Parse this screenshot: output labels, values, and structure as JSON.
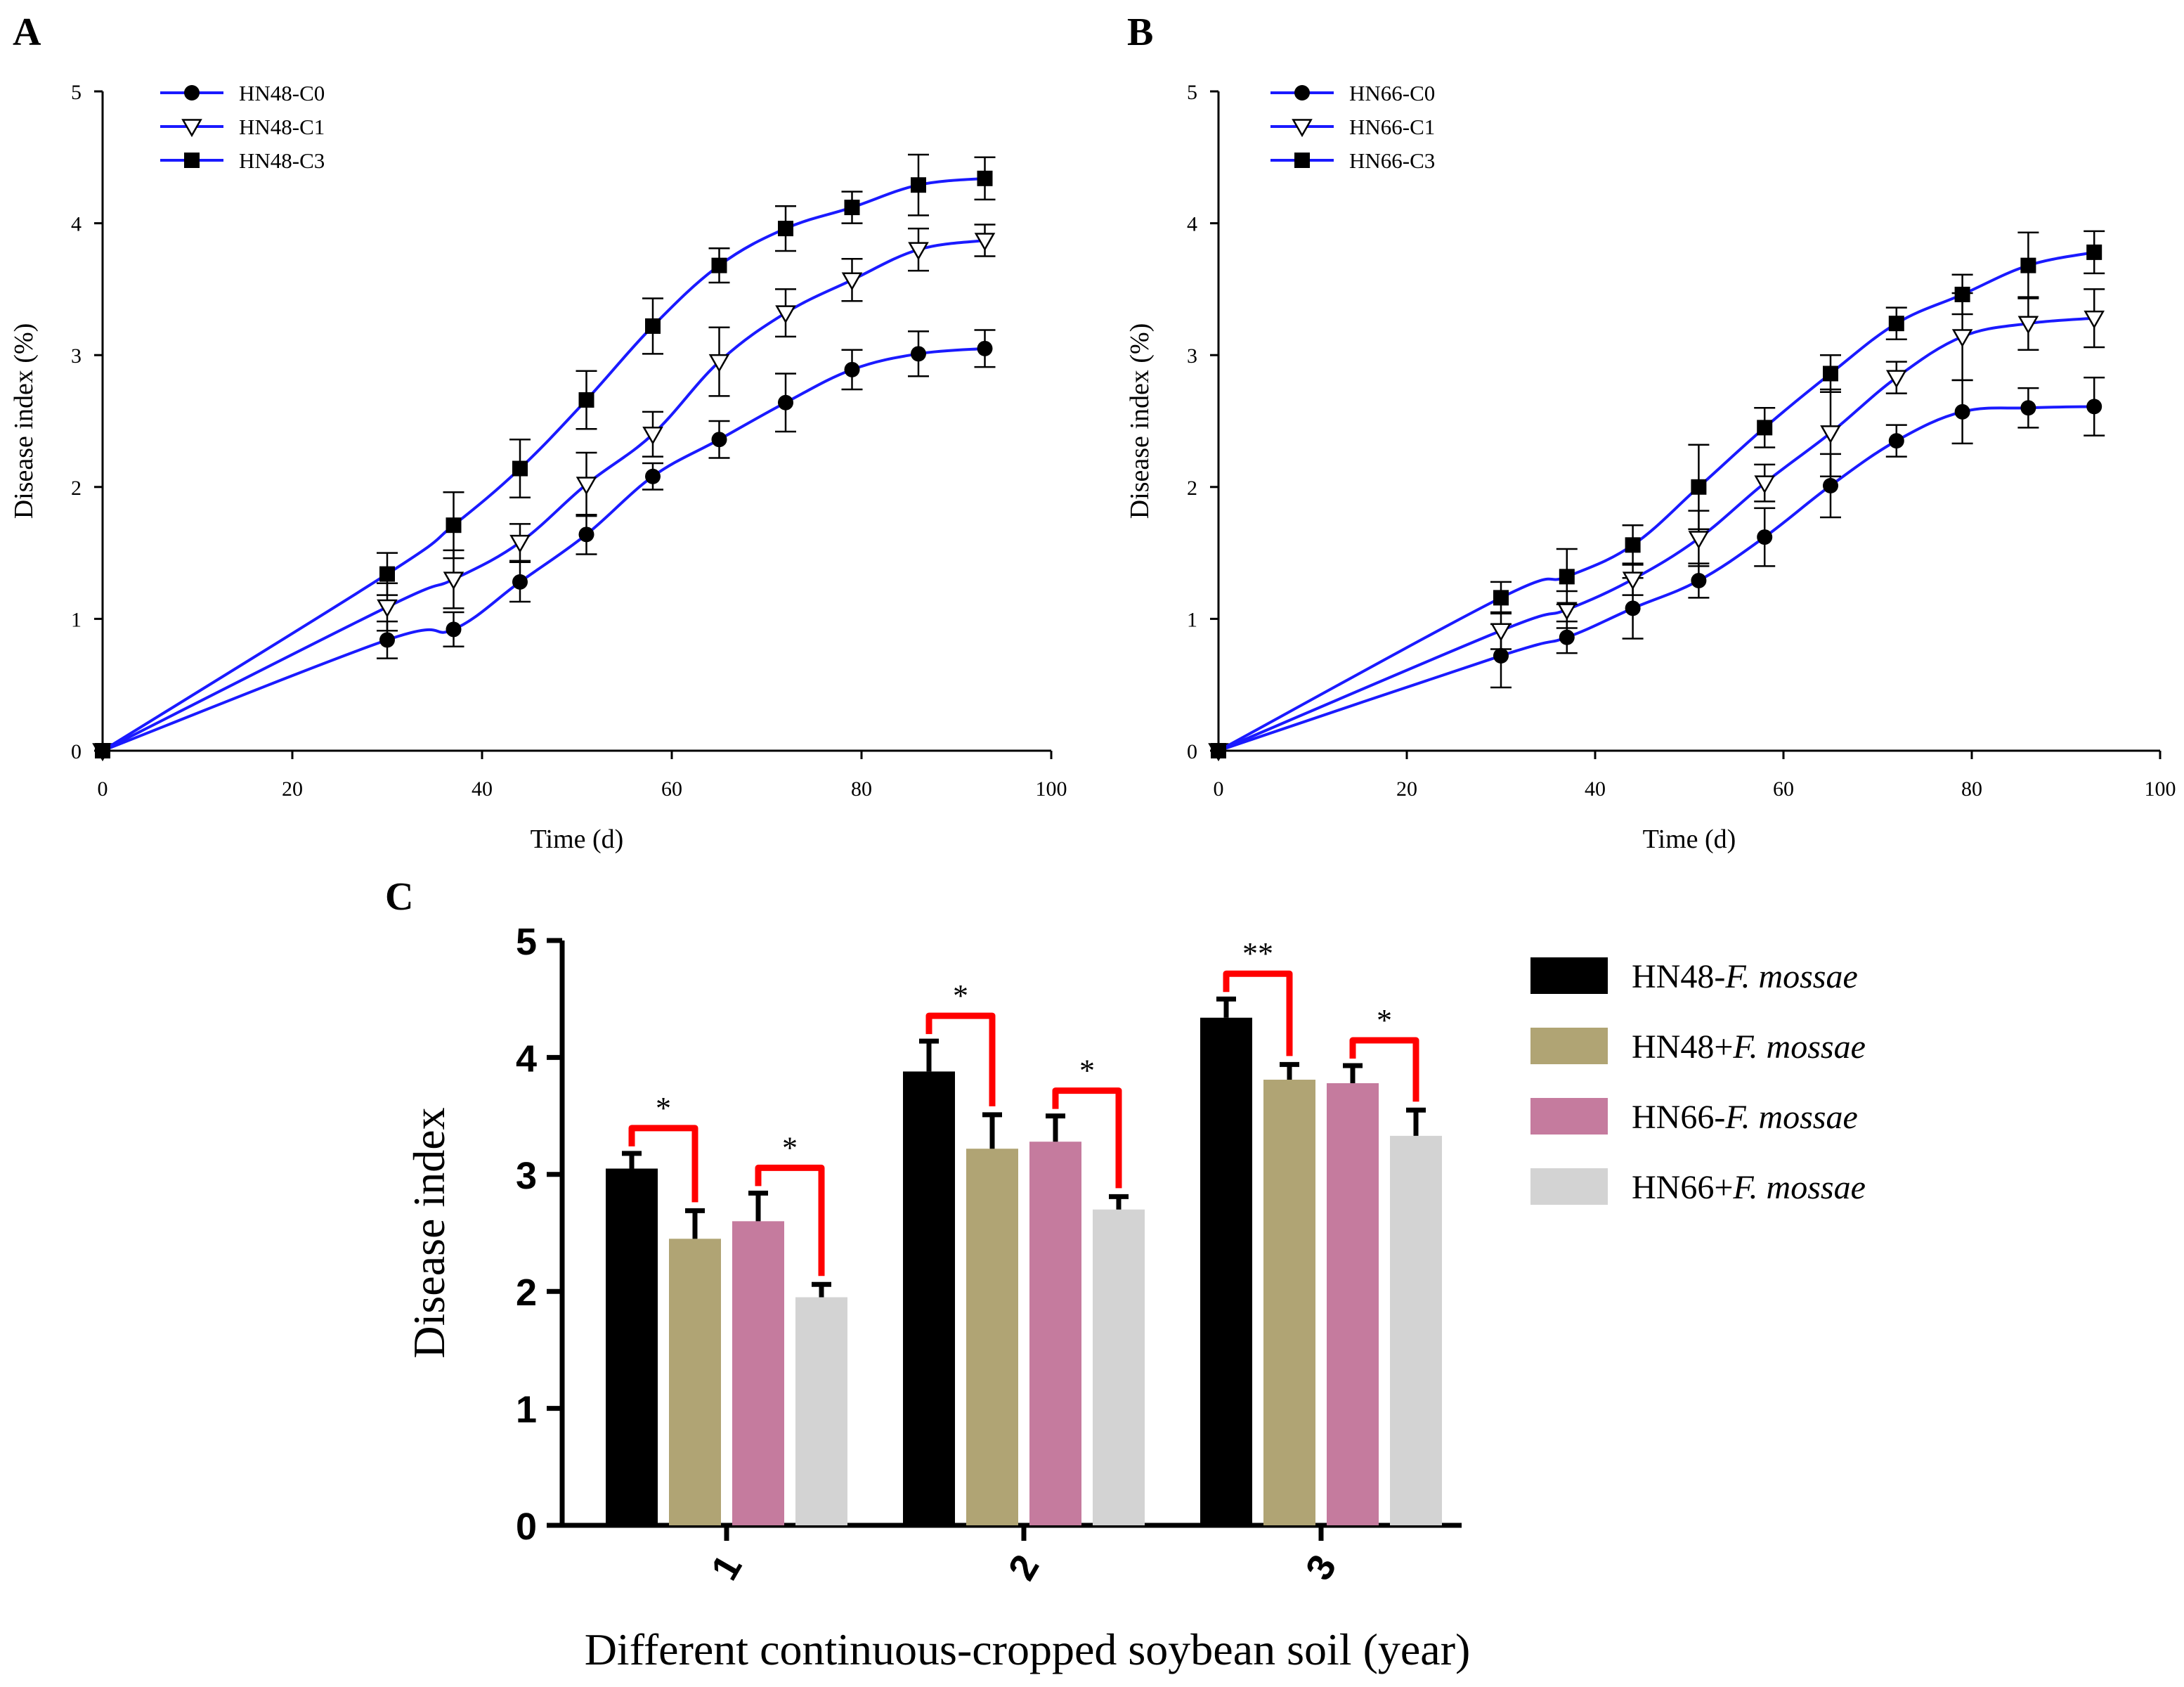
{
  "chart_data": [
    {
      "panel": "A",
      "type": "line",
      "title": "",
      "xlabel": "Time (d)",
      "ylabel": "Disease index (%)",
      "xlim": [
        0,
        100
      ],
      "ylim": [
        0,
        5
      ],
      "xticks": [
        0,
        20,
        40,
        60,
        80,
        100
      ],
      "yticks": [
        0,
        1,
        2,
        3,
        4,
        5
      ],
      "legend_position": "top-left",
      "x": [
        0,
        30,
        37,
        44,
        51,
        58,
        65,
        72,
        79,
        86,
        93
      ],
      "series": [
        {
          "name": "HN48-C0",
          "marker": "circle",
          "values": [
            0,
            0.84,
            0.92,
            1.28,
            1.64,
            2.08,
            2.36,
            2.64,
            2.89,
            3.01,
            3.05
          ],
          "errors": [
            0,
            0.14,
            0.13,
            0.15,
            0.15,
            0.1,
            0.14,
            0.22,
            0.15,
            0.17,
            0.14
          ]
        },
        {
          "name": "HN48-C1",
          "marker": "triangle-down-open",
          "values": [
            0,
            1.09,
            1.3,
            1.58,
            2.02,
            2.4,
            2.95,
            3.32,
            3.57,
            3.8,
            3.87
          ],
          "errors": [
            0,
            0.18,
            0.22,
            0.14,
            0.24,
            0.17,
            0.26,
            0.18,
            0.16,
            0.16,
            0.12
          ]
        },
        {
          "name": "HN48-C3",
          "marker": "square",
          "values": [
            0,
            1.34,
            1.71,
            2.14,
            2.66,
            3.22,
            3.68,
            3.96,
            4.12,
            4.29,
            4.34
          ],
          "errors": [
            0,
            0.16,
            0.25,
            0.22,
            0.22,
            0.21,
            0.13,
            0.17,
            0.12,
            0.23,
            0.16
          ]
        }
      ]
    },
    {
      "panel": "B",
      "type": "line",
      "title": "",
      "xlabel": "Time (d)",
      "ylabel": "Disease index (%)",
      "xlim": [
        0,
        100
      ],
      "ylim": [
        0,
        5
      ],
      "xticks": [
        0,
        20,
        40,
        60,
        80,
        100
      ],
      "yticks": [
        0,
        1,
        2,
        3,
        4,
        5
      ],
      "legend_position": "top-left",
      "x": [
        0,
        30,
        37,
        44,
        51,
        58,
        65,
        72,
        79,
        86,
        93
      ],
      "series": [
        {
          "name": "HN66-C0",
          "marker": "circle",
          "values": [
            0,
            0.72,
            0.86,
            1.08,
            1.29,
            1.62,
            2.01,
            2.35,
            2.57,
            2.6,
            2.61
          ],
          "errors": [
            0,
            0.24,
            0.12,
            0.23,
            0.13,
            0.22,
            0.24,
            0.12,
            0.24,
            0.15,
            0.22
          ]
        },
        {
          "name": "HN66-C1",
          "marker": "triangle-down-open",
          "values": [
            0,
            0.91,
            1.07,
            1.3,
            1.61,
            2.03,
            2.41,
            2.83,
            3.14,
            3.24,
            3.28
          ],
          "errors": [
            0,
            0.14,
            0.14,
            0.12,
            0.21,
            0.14,
            0.33,
            0.12,
            0.33,
            0.2,
            0.22
          ]
        },
        {
          "name": "HN66-C3",
          "marker": "square",
          "values": [
            0,
            1.16,
            1.32,
            1.56,
            2.0,
            2.45,
            2.86,
            3.24,
            3.46,
            3.68,
            3.78
          ],
          "errors": [
            0,
            0.12,
            0.21,
            0.15,
            0.32,
            0.15,
            0.14,
            0.12,
            0.15,
            0.25,
            0.16
          ]
        }
      ]
    },
    {
      "panel": "C",
      "type": "bar",
      "title": "",
      "xlabel": "Different continuous-cropped soybean soil (year)",
      "ylabel": "Disease index",
      "ylim": [
        0,
        5
      ],
      "yticks": [
        0,
        1,
        2,
        3,
        4,
        5
      ],
      "categories": [
        "1",
        "2",
        "3"
      ],
      "legend_position": "right",
      "series": [
        {
          "name": "HN48-F. mossae",
          "prefix": "HN48-",
          "italic": "F. mossae",
          "color": "#000000",
          "values": [
            3.05,
            3.88,
            4.34
          ],
          "errors": [
            0.13,
            0.26,
            0.16
          ]
        },
        {
          "name": "HN48+F. mossae",
          "prefix": "HN48+",
          "italic": "F. mossae",
          "color": "#b0a474",
          "values": [
            2.45,
            3.22,
            3.81
          ],
          "errors": [
            0.24,
            0.29,
            0.13
          ]
        },
        {
          "name": "HN66-F. mossae",
          "prefix": "HN66-",
          "italic": "F. mossae",
          "color": "#c57b9e",
          "values": [
            2.6,
            3.28,
            3.78
          ],
          "errors": [
            0.24,
            0.22,
            0.15
          ]
        },
        {
          "name": "HN66+F. mossae",
          "prefix": "HN66+",
          "italic": "F. mossae",
          "color": "#d3d3d3",
          "values": [
            1.95,
            2.7,
            3.33
          ],
          "errors": [
            0.11,
            0.11,
            0.22
          ]
        }
      ],
      "significance": [
        {
          "category": 0,
          "from": 0,
          "to": 1,
          "label": "*"
        },
        {
          "category": 0,
          "from": 2,
          "to": 3,
          "label": "*"
        },
        {
          "category": 1,
          "from": 0,
          "to": 1,
          "label": "*"
        },
        {
          "category": 1,
          "from": 2,
          "to": 3,
          "label": "*"
        },
        {
          "category": 2,
          "from": 0,
          "to": 1,
          "label": "**"
        },
        {
          "category": 2,
          "from": 2,
          "to": 3,
          "label": "*"
        }
      ],
      "bracket_color": "#ff0000"
    }
  ],
  "colors": {
    "line": "#1a1aff",
    "axis": "#000000",
    "bracket": "#ff0000"
  }
}
